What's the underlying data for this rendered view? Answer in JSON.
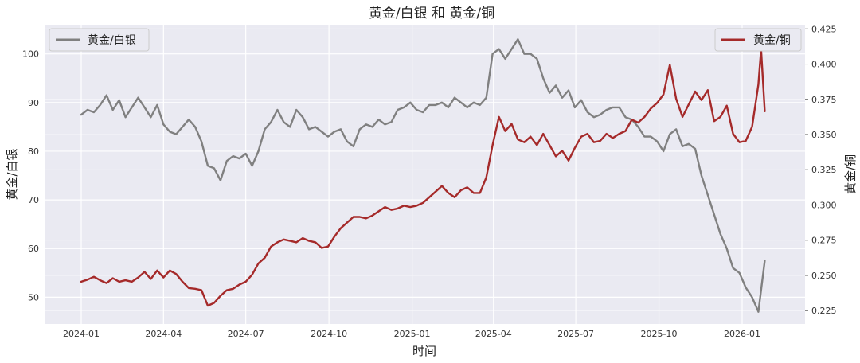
{
  "chart_data": {
    "type": "line",
    "title": "黄金/白银 和 黄金/铜",
    "xlabel": "时间",
    "ylabel_left": "黄金/白银",
    "ylabel_right": "黄金/铜",
    "x_ticks": [
      "2024-01",
      "2024-04",
      "2024-07",
      "2024-10",
      "2025-01",
      "2025-04",
      "2025-07",
      "2025-10",
      "2026-01"
    ],
    "y_left_ticks": [
      "50",
      "60",
      "70",
      "80",
      "90",
      "100"
    ],
    "y_right_ticks": [
      "0.225",
      "0.250",
      "0.275",
      "0.300",
      "0.325",
      "0.350",
      "0.375",
      "0.400",
      "0.425"
    ],
    "y_left_range": [
      44.5,
      106
    ],
    "y_right_range": [
      0.2155,
      0.428
    ],
    "background": "#eaeaf2",
    "grid": true,
    "legends": [
      {
        "position": "top-left",
        "label": "黄金/白银",
        "color": "#808080"
      },
      {
        "position": "top-right",
        "label": "黄金/铜",
        "color": "#a52a2a"
      }
    ],
    "series": [
      {
        "name": "黄金/白银",
        "axis": "left",
        "color": "#808080",
        "points": [
          [
            "2024-01-01",
            87.5
          ],
          [
            "2024-01-08",
            88.5
          ],
          [
            "2024-01-15",
            88
          ],
          [
            "2024-01-22",
            89.5
          ],
          [
            "2024-01-29",
            91.5
          ],
          [
            "2024-02-05",
            88.5
          ],
          [
            "2024-02-12",
            90.5
          ],
          [
            "2024-02-19",
            87
          ],
          [
            "2024-02-26",
            89
          ],
          [
            "2024-03-04",
            91
          ],
          [
            "2024-03-11",
            89
          ],
          [
            "2024-03-18",
            87
          ],
          [
            "2024-03-25",
            89.5
          ],
          [
            "2024-04-01",
            85.5
          ],
          [
            "2024-04-08",
            84
          ],
          [
            "2024-04-15",
            83.5
          ],
          [
            "2024-04-22",
            85
          ],
          [
            "2024-04-29",
            86.5
          ],
          [
            "2024-05-06",
            85
          ],
          [
            "2024-05-13",
            82
          ],
          [
            "2024-05-20",
            77
          ],
          [
            "2024-05-27",
            76.5
          ],
          [
            "2024-06-03",
            74
          ],
          [
            "2024-06-10",
            78
          ],
          [
            "2024-06-17",
            79
          ],
          [
            "2024-06-24",
            78.5
          ],
          [
            "2024-07-01",
            79.5
          ],
          [
            "2024-07-08",
            77
          ],
          [
            "2024-07-15",
            80
          ],
          [
            "2024-07-22",
            84.5
          ],
          [
            "2024-07-29",
            86
          ],
          [
            "2024-08-05",
            88.5
          ],
          [
            "2024-08-12",
            86
          ],
          [
            "2024-08-19",
            85
          ],
          [
            "2024-08-26",
            88.5
          ],
          [
            "2024-09-02",
            87
          ],
          [
            "2024-09-09",
            84.5
          ],
          [
            "2024-09-16",
            85
          ],
          [
            "2024-09-23",
            84
          ],
          [
            "2024-09-30",
            83
          ],
          [
            "2024-10-07",
            84
          ],
          [
            "2024-10-14",
            84.5
          ],
          [
            "2024-10-21",
            82
          ],
          [
            "2024-10-28",
            81
          ],
          [
            "2024-11-04",
            84.5
          ],
          [
            "2024-11-11",
            85.5
          ],
          [
            "2024-11-18",
            85
          ],
          [
            "2024-11-25",
            86.5
          ],
          [
            "2024-12-02",
            85.5
          ],
          [
            "2024-12-09",
            86
          ],
          [
            "2024-12-16",
            88.5
          ],
          [
            "2024-12-23",
            89
          ],
          [
            "2024-12-30",
            90
          ],
          [
            "2025-01-06",
            88.5
          ],
          [
            "2025-01-13",
            88
          ],
          [
            "2025-01-20",
            89.5
          ],
          [
            "2025-01-27",
            89.5
          ],
          [
            "2025-02-03",
            90
          ],
          [
            "2025-02-10",
            89
          ],
          [
            "2025-02-17",
            91
          ],
          [
            "2025-02-24",
            90
          ],
          [
            "2025-03-03",
            89
          ],
          [
            "2025-03-10",
            90
          ],
          [
            "2025-03-17",
            89.5
          ],
          [
            "2025-03-24",
            91
          ],
          [
            "2025-03-31",
            100
          ],
          [
            "2025-04-07",
            101
          ],
          [
            "2025-04-14",
            99
          ],
          [
            "2025-04-21",
            101
          ],
          [
            "2025-04-28",
            103
          ],
          [
            "2025-05-05",
            100
          ],
          [
            "2025-05-12",
            100
          ],
          [
            "2025-05-19",
            99
          ],
          [
            "2025-05-26",
            95
          ],
          [
            "2025-06-02",
            92
          ],
          [
            "2025-06-09",
            93.5
          ],
          [
            "2025-06-16",
            91
          ],
          [
            "2025-06-23",
            92.5
          ],
          [
            "2025-06-30",
            89
          ],
          [
            "2025-07-07",
            90.5
          ],
          [
            "2025-07-14",
            88
          ],
          [
            "2025-07-21",
            87
          ],
          [
            "2025-07-28",
            87.5
          ],
          [
            "2025-08-04",
            88.5
          ],
          [
            "2025-08-11",
            89
          ],
          [
            "2025-08-18",
            89
          ],
          [
            "2025-08-25",
            87
          ],
          [
            "2025-09-01",
            86.5
          ],
          [
            "2025-09-08",
            85
          ],
          [
            "2025-09-15",
            83
          ],
          [
            "2025-09-22",
            83
          ],
          [
            "2025-09-29",
            82
          ],
          [
            "2025-10-06",
            80
          ],
          [
            "2025-10-13",
            83.5
          ],
          [
            "2025-10-20",
            84.5
          ],
          [
            "2025-10-27",
            81
          ],
          [
            "2025-11-03",
            81.5
          ],
          [
            "2025-11-10",
            80.5
          ],
          [
            "2025-11-17",
            75
          ],
          [
            "2025-11-24",
            71
          ],
          [
            "2025-12-01",
            67
          ],
          [
            "2025-12-08",
            63
          ],
          [
            "2025-12-15",
            60
          ],
          [
            "2025-12-22",
            56
          ],
          [
            "2025-12-29",
            55
          ],
          [
            "2026-01-05",
            52
          ],
          [
            "2026-01-12",
            50
          ],
          [
            "2026-01-19",
            47
          ],
          [
            "2026-01-26",
            57.5
          ]
        ]
      },
      {
        "name": "黄金/铜",
        "axis": "right",
        "color": "#a52a2a",
        "points": [
          [
            "2024-01-01",
            0.2455
          ],
          [
            "2024-01-08",
            0.247
          ],
          [
            "2024-01-15",
            0.249
          ],
          [
            "2024-01-22",
            0.2465
          ],
          [
            "2024-01-29",
            0.2445
          ],
          [
            "2024-02-05",
            0.248
          ],
          [
            "2024-02-12",
            0.2455
          ],
          [
            "2024-02-19",
            0.2465
          ],
          [
            "2024-02-26",
            0.2455
          ],
          [
            "2024-03-04",
            0.2485
          ],
          [
            "2024-03-11",
            0.2525
          ],
          [
            "2024-03-18",
            0.2475
          ],
          [
            "2024-03-25",
            0.2535
          ],
          [
            "2024-04-01",
            0.2485
          ],
          [
            "2024-04-08",
            0.2535
          ],
          [
            "2024-04-15",
            0.251
          ],
          [
            "2024-04-22",
            0.2455
          ],
          [
            "2024-04-29",
            0.241
          ],
          [
            "2024-05-06",
            0.2405
          ],
          [
            "2024-05-13",
            0.2395
          ],
          [
            "2024-05-20",
            0.2285
          ],
          [
            "2024-05-27",
            0.2305
          ],
          [
            "2024-06-03",
            0.2355
          ],
          [
            "2024-06-10",
            0.2395
          ],
          [
            "2024-06-17",
            0.2405
          ],
          [
            "2024-06-24",
            0.2435
          ],
          [
            "2024-07-01",
            0.2455
          ],
          [
            "2024-07-08",
            0.2505
          ],
          [
            "2024-07-15",
            0.2585
          ],
          [
            "2024-07-22",
            0.2625
          ],
          [
            "2024-07-29",
            0.2705
          ],
          [
            "2024-08-05",
            0.2735
          ],
          [
            "2024-08-12",
            0.2755
          ],
          [
            "2024-08-19",
            0.2745
          ],
          [
            "2024-08-26",
            0.2735
          ],
          [
            "2024-09-02",
            0.2765
          ],
          [
            "2024-09-09",
            0.2745
          ],
          [
            "2024-09-16",
            0.2735
          ],
          [
            "2024-09-23",
            0.2695
          ],
          [
            "2024-09-30",
            0.2705
          ],
          [
            "2024-10-07",
            0.2775
          ],
          [
            "2024-10-14",
            0.2835
          ],
          [
            "2024-10-21",
            0.2875
          ],
          [
            "2024-10-28",
            0.2915
          ],
          [
            "2024-11-04",
            0.2915
          ],
          [
            "2024-11-11",
            0.2905
          ],
          [
            "2024-11-18",
            0.2925
          ],
          [
            "2024-11-25",
            0.2955
          ],
          [
            "2024-12-02",
            0.2985
          ],
          [
            "2024-12-09",
            0.2965
          ],
          [
            "2024-12-16",
            0.2975
          ],
          [
            "2024-12-23",
            0.2995
          ],
          [
            "2024-12-30",
            0.2985
          ],
          [
            "2025-01-06",
            0.2995
          ],
          [
            "2025-01-13",
            0.3015
          ],
          [
            "2025-01-20",
            0.3055
          ],
          [
            "2025-01-27",
            0.3095
          ],
          [
            "2025-02-03",
            0.3135
          ],
          [
            "2025-02-10",
            0.3085
          ],
          [
            "2025-02-17",
            0.3055
          ],
          [
            "2025-02-24",
            0.3105
          ],
          [
            "2025-03-03",
            0.3125
          ],
          [
            "2025-03-10",
            0.3085
          ],
          [
            "2025-03-17",
            0.3085
          ],
          [
            "2025-03-24",
            0.3195
          ],
          [
            "2025-03-31",
            0.3425
          ],
          [
            "2025-04-07",
            0.3625
          ],
          [
            "2025-04-14",
            0.3525
          ],
          [
            "2025-04-21",
            0.3575
          ],
          [
            "2025-04-28",
            0.3465
          ],
          [
            "2025-05-05",
            0.3445
          ],
          [
            "2025-05-12",
            0.3485
          ],
          [
            "2025-05-19",
            0.3425
          ],
          [
            "2025-05-26",
            0.3505
          ],
          [
            "2025-06-02",
            0.3425
          ],
          [
            "2025-06-09",
            0.3345
          ],
          [
            "2025-06-16",
            0.3385
          ],
          [
            "2025-06-23",
            0.3315
          ],
          [
            "2025-06-30",
            0.3405
          ],
          [
            "2025-07-07",
            0.3485
          ],
          [
            "2025-07-14",
            0.3505
          ],
          [
            "2025-07-21",
            0.3445
          ],
          [
            "2025-07-28",
            0.3455
          ],
          [
            "2025-08-04",
            0.3505
          ],
          [
            "2025-08-11",
            0.3475
          ],
          [
            "2025-08-18",
            0.3505
          ],
          [
            "2025-08-25",
            0.3525
          ],
          [
            "2025-09-01",
            0.3605
          ],
          [
            "2025-09-08",
            0.3585
          ],
          [
            "2025-09-15",
            0.3625
          ],
          [
            "2025-09-22",
            0.3685
          ],
          [
            "2025-09-29",
            0.3725
          ],
          [
            "2025-10-06",
            0.3785
          ],
          [
            "2025-10-13",
            0.3995
          ],
          [
            "2025-10-20",
            0.3755
          ],
          [
            "2025-10-27",
            0.3625
          ],
          [
            "2025-11-03",
            0.3715
          ],
          [
            "2025-11-10",
            0.3805
          ],
          [
            "2025-11-17",
            0.3745
          ],
          [
            "2025-11-24",
            0.3815
          ],
          [
            "2025-12-01",
            0.3595
          ],
          [
            "2025-12-08",
            0.3625
          ],
          [
            "2025-12-15",
            0.3705
          ],
          [
            "2025-12-22",
            0.3505
          ],
          [
            "2025-12-29",
            0.3445
          ],
          [
            "2026-01-05",
            0.3455
          ],
          [
            "2026-01-12",
            0.3555
          ],
          [
            "2026-01-19",
            0.3855
          ],
          [
            "2026-01-22",
            0.4105
          ],
          [
            "2026-01-26",
            0.3665
          ]
        ]
      }
    ]
  }
}
